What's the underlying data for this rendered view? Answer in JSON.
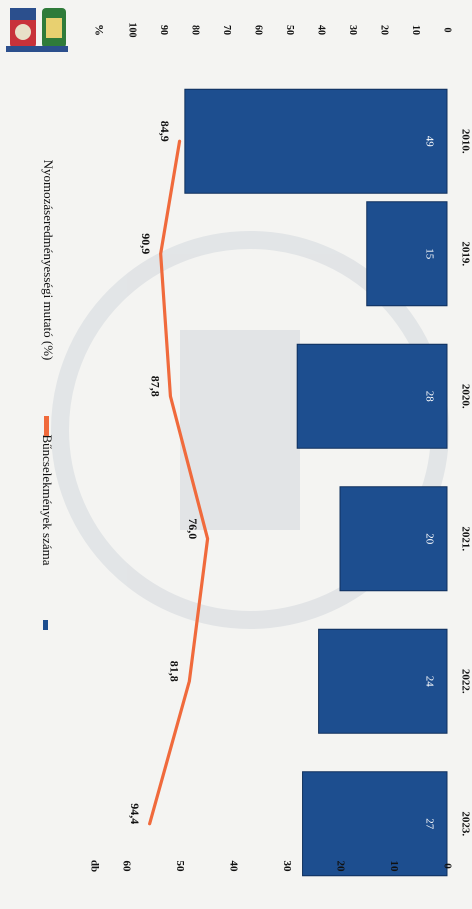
{
  "chart_data": {
    "type": "bar",
    "orientation": "rotated-90-clockwise",
    "categories": [
      "2010.",
      "2019.",
      "2020.",
      "2021.",
      "2022.",
      "2023."
    ],
    "series": [
      {
        "name": "Bűncselekmények száma",
        "type": "bar",
        "axis": "left",
        "values": [
          49,
          15,
          28,
          20,
          24,
          27
        ],
        "color": "#1d4e8f"
      },
      {
        "name": "Nyomozáseredményességi mutató (%)",
        "type": "line",
        "axis": "right",
        "values": [
          84.9,
          90.9,
          87.8,
          76.0,
          81.8,
          94.4
        ],
        "labels": [
          "84,9",
          "90,9",
          "87,8",
          "76,0",
          "81,8",
          "94,4"
        ],
        "color": "#f06a3c"
      }
    ],
    "y_left": {
      "label": "db",
      "ylim": [
        0,
        60
      ],
      "ticks": [
        "0",
        "10",
        "20",
        "30",
        "40",
        "50",
        "60"
      ]
    },
    "y_right": {
      "label": "%",
      "ylim": [
        0,
        100
      ],
      "ticks": [
        "0",
        "10",
        "20",
        "30",
        "40",
        "50",
        "60",
        "70",
        "80",
        "90",
        "100"
      ]
    },
    "legend_position": "top",
    "grid": false
  }
}
